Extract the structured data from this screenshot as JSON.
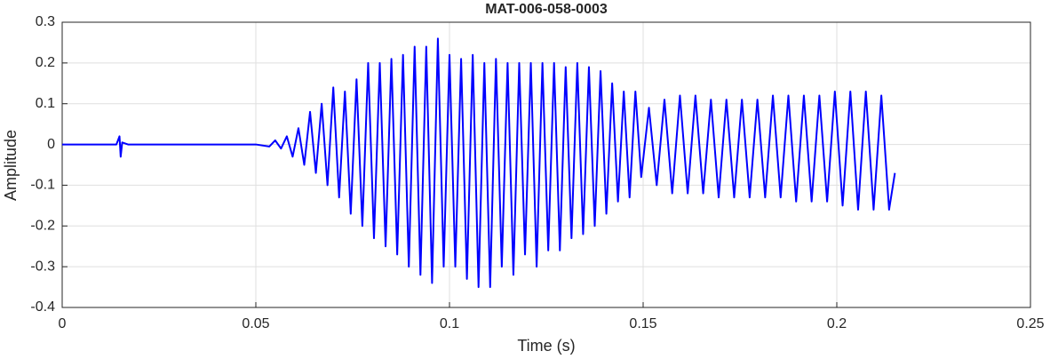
{
  "chart_data": {
    "type": "line",
    "title": "MAT-006-058-0003",
    "xlabel": "Time (s)",
    "ylabel": "Amplitude",
    "xlim": [
      0,
      0.25
    ],
    "ylim": [
      -0.4,
      0.3
    ],
    "xticks": [
      0,
      0.05,
      0.1,
      0.15,
      0.2,
      0.25
    ],
    "yticks": [
      -0.4,
      -0.3,
      -0.2,
      -0.1,
      0,
      0.1,
      0.2,
      0.3
    ],
    "grid": true,
    "series": [
      {
        "name": "Amplitude",
        "color": "#0000ff",
        "x": [
          0,
          0.014,
          0.0148,
          0.0151,
          0.0155,
          0.017,
          0.05,
          0.0535,
          0.055,
          0.0565,
          0.058,
          0.0595,
          0.061,
          0.0625,
          0.064,
          0.0655,
          0.067,
          0.0685,
          0.07,
          0.0715,
          0.073,
          0.0745,
          0.076,
          0.0775,
          0.079,
          0.0805,
          0.082,
          0.0835,
          0.085,
          0.0865,
          0.088,
          0.0895,
          0.091,
          0.0925,
          0.094,
          0.0955,
          0.097,
          0.0985,
          0.1,
          0.1015,
          0.103,
          0.1045,
          0.106,
          0.1075,
          0.109,
          0.1105,
          0.112,
          0.1135,
          0.115,
          0.1165,
          0.118,
          0.1195,
          0.121,
          0.1225,
          0.124,
          0.1255,
          0.127,
          0.1285,
          0.13,
          0.1315,
          0.133,
          0.1345,
          0.136,
          0.1375,
          0.139,
          0.1405,
          0.142,
          0.1435,
          0.145,
          0.1465,
          0.148,
          0.1495,
          0.1515,
          0.1535,
          0.1555,
          0.1575,
          0.1595,
          0.1615,
          0.1635,
          0.1655,
          0.1675,
          0.1695,
          0.1715,
          0.1735,
          0.1755,
          0.1775,
          0.1795,
          0.1815,
          0.1835,
          0.1855,
          0.1875,
          0.1895,
          0.1915,
          0.1935,
          0.1955,
          0.1975,
          0.1995,
          0.2015,
          0.2035,
          0.2055,
          0.2075,
          0.2095,
          0.2115,
          0.2135,
          0.215
        ],
        "values": [
          0,
          0,
          0.02,
          -0.03,
          0.005,
          0,
          0,
          -0.005,
          0.01,
          -0.01,
          0.02,
          -0.03,
          0.04,
          -0.05,
          0.08,
          -0.07,
          0.1,
          -0.1,
          0.14,
          -0.13,
          0.13,
          -0.17,
          0.16,
          -0.2,
          0.2,
          -0.23,
          0.2,
          -0.25,
          0.21,
          -0.27,
          0.22,
          -0.3,
          0.24,
          -0.32,
          0.24,
          -0.34,
          0.26,
          -0.3,
          0.22,
          -0.3,
          0.21,
          -0.33,
          0.22,
          -0.35,
          0.2,
          -0.35,
          0.21,
          -0.3,
          0.2,
          -0.32,
          0.2,
          -0.27,
          0.2,
          -0.3,
          0.2,
          -0.26,
          0.2,
          -0.26,
          0.19,
          -0.23,
          0.2,
          -0.22,
          0.19,
          -0.2,
          0.18,
          -0.17,
          0.15,
          -0.14,
          0.13,
          -0.13,
          0.13,
          -0.08,
          0.09,
          -0.1,
          0.11,
          -0.12,
          0.12,
          -0.12,
          0.12,
          -0.12,
          0.11,
          -0.13,
          0.11,
          -0.13,
          0.11,
          -0.13,
          0.11,
          -0.13,
          0.12,
          -0.13,
          0.12,
          -0.14,
          0.12,
          -0.14,
          0.12,
          -0.14,
          0.13,
          -0.15,
          0.13,
          -0.16,
          0.13,
          -0.16,
          0.12,
          -0.16,
          -0.07
        ]
      }
    ]
  }
}
